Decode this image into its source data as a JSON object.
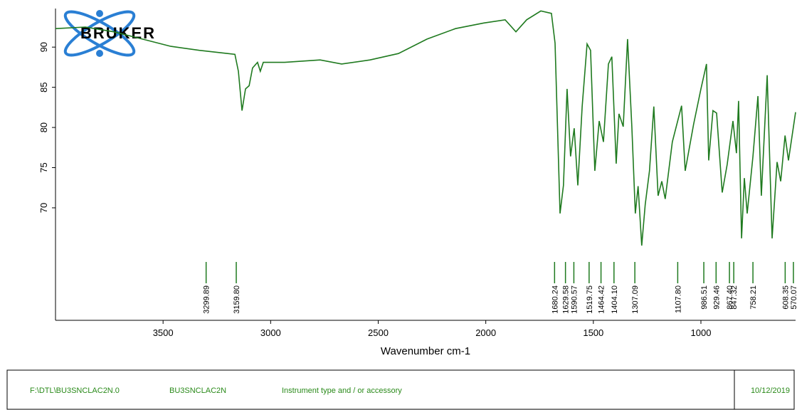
{
  "chart_data": {
    "type": "line",
    "logo": "BRUKER",
    "xlabel": "Wavenumber cm-1",
    "color": "#1f7a1f",
    "xlim": [
      4000,
      560
    ],
    "xticks": [
      3500,
      3000,
      2500,
      2000,
      1500,
      1000
    ],
    "ylim": [
      56,
      94.8
    ],
    "yticks": [
      70,
      75,
      80,
      85,
      90
    ],
    "x": [
      4000,
      3861,
      3729,
      3596,
      3464,
      3332,
      3200,
      3166,
      3150,
      3133,
      3117,
      3100,
      3084,
      3061,
      3048,
      3034,
      2935,
      2770,
      2670,
      2538,
      2406,
      2273,
      2141,
      2009,
      1910,
      1860,
      1810,
      1744,
      1695,
      1678,
      1655,
      1639,
      1622,
      1606,
      1589,
      1572,
      1552,
      1529,
      1513,
      1493,
      1473,
      1453,
      1430,
      1414,
      1394,
      1381,
      1361,
      1341,
      1321,
      1305,
      1292,
      1275,
      1259,
      1239,
      1219,
      1199,
      1182,
      1166,
      1133,
      1090,
      1073,
      1034,
      1000,
      974,
      964,
      944,
      927,
      901,
      878,
      851,
      835,
      825,
      811,
      798,
      785,
      758,
      735,
      719,
      692,
      669,
      646,
      629,
      609,
      593,
      560
    ],
    "series": [
      {
        "name": null,
        "values": [
          92.3,
          92.5,
          91.9,
          91.0,
          90.1,
          89.6,
          89.2,
          89.1,
          87.0,
          82.1,
          84.8,
          85.2,
          87.4,
          88.1,
          87.0,
          88.1,
          88.1,
          88.4,
          87.9,
          88.4,
          89.2,
          91.0,
          92.3,
          93.0,
          93.4,
          91.9,
          93.4,
          94.5,
          94.2,
          90.5,
          69.3,
          72.8,
          84.8,
          76.4,
          79.9,
          72.8,
          82.6,
          90.4,
          89.6,
          74.6,
          80.8,
          78.2,
          87.9,
          88.8,
          75.5,
          81.7,
          80.1,
          91.0,
          80.1,
          69.3,
          72.7,
          65.3,
          70.4,
          74.6,
          82.6,
          71.5,
          73.3,
          71.1,
          78.2,
          82.7,
          74.6,
          80.4,
          84.8,
          87.9,
          75.9,
          82.1,
          81.8,
          71.9,
          75.4,
          80.8,
          76.8,
          83.3,
          66.2,
          73.7,
          69.3,
          76.4,
          83.9,
          71.5,
          86.5,
          66.2,
          75.7,
          73.3,
          79.0,
          75.9,
          81.9
        ]
      }
    ],
    "peaks": [
      3299.89,
      {
        "value": 3159.8,
        "label": "3159.80"
      },
      1680.24,
      1629.58,
      1590.57,
      1519.75,
      1464.42,
      {
        "value": 1404.1,
        "label": "1404.10"
      },
      1307.09,
      {
        "value": 1107.8,
        "label": "1107.80"
      },
      986.51,
      929.46,
      {
        "value": 867.4,
        "label": "867.40"
      },
      847.32,
      758.21,
      608.35,
      570.07
    ]
  },
  "footer": {
    "path": "F:\\DTL\\BU3SNCLAC2N.0",
    "sample": "BU3SNCLAC2N",
    "instrument": "Instrument type and / or accessory",
    "date": "10/12/2019"
  }
}
